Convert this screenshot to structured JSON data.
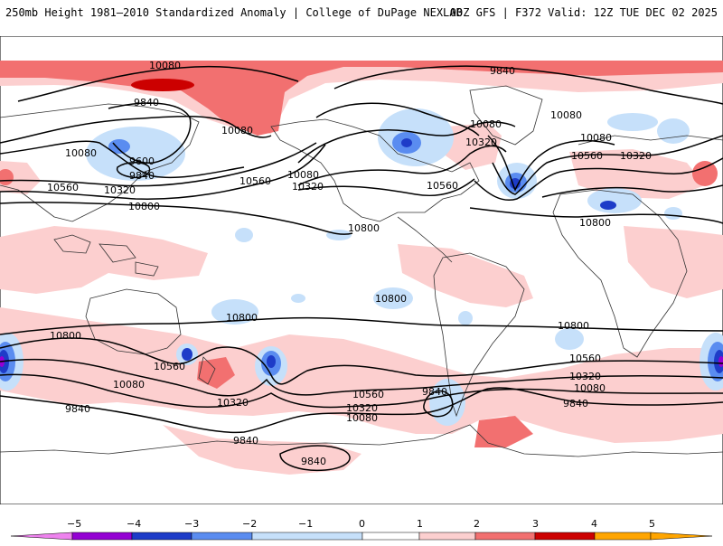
{
  "header": {
    "title": "250mb Height 1981–2010 Standardized Anomaly | College of DuPage NEXLAB",
    "run_info": "00Z GFS | F372 Valid: 12Z TUE DEC 02 2025"
  },
  "colors": {
    "neg5": "#ee82ee",
    "neg4": "#9400d3",
    "neg3": "#1e3cc8",
    "neg2": "#5a8cf0",
    "neg1": "#c6e0fa",
    "zero": "#ffffff",
    "pos1": "#fccfcf",
    "pos2": "#f27070",
    "pos3": "#cc0000",
    "pos4": "#ffa500"
  },
  "colorbar": {
    "ticks": [
      "−5",
      "−4",
      "−3",
      "−2",
      "−1",
      "0",
      "1",
      "2",
      "3",
      "4",
      "5"
    ]
  },
  "contour_labels": [
    "10080",
    "9840",
    "10080",
    "9840",
    "10080",
    "10560",
    "10080",
    "9600",
    "9840",
    "10320",
    "10800",
    "10560",
    "10080",
    "10320",
    "10560",
    "10800",
    "10080",
    "10320",
    "10080",
    "10560",
    "10320",
    "10800",
    "10800",
    "10800",
    "10800",
    "10800",
    "10560",
    "10080",
    "9840",
    "10320",
    "10560",
    "10320",
    "10080",
    "9840",
    "10560",
    "10320",
    "10080",
    "9840",
    "9840",
    "9840"
  ]
}
